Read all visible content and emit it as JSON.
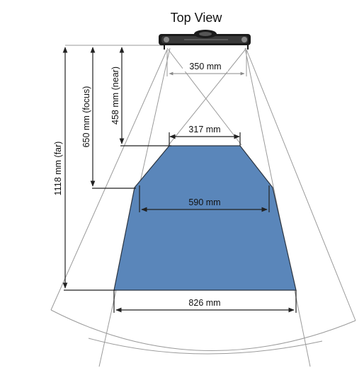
{
  "title": "Top View",
  "labels": {
    "width_sensor": "350 mm",
    "width_near": "317 mm",
    "width_focus": "590 mm",
    "width_far": "826 mm",
    "dist_near": "458 mm (near)",
    "dist_focus": "650 mm (focus)",
    "dist_far": "1118 mm (far)"
  },
  "colors": {
    "field_fill": "#5a86ba",
    "field_stroke": "#2b3440",
    "sensor_body": "#1b1b1b"
  }
}
